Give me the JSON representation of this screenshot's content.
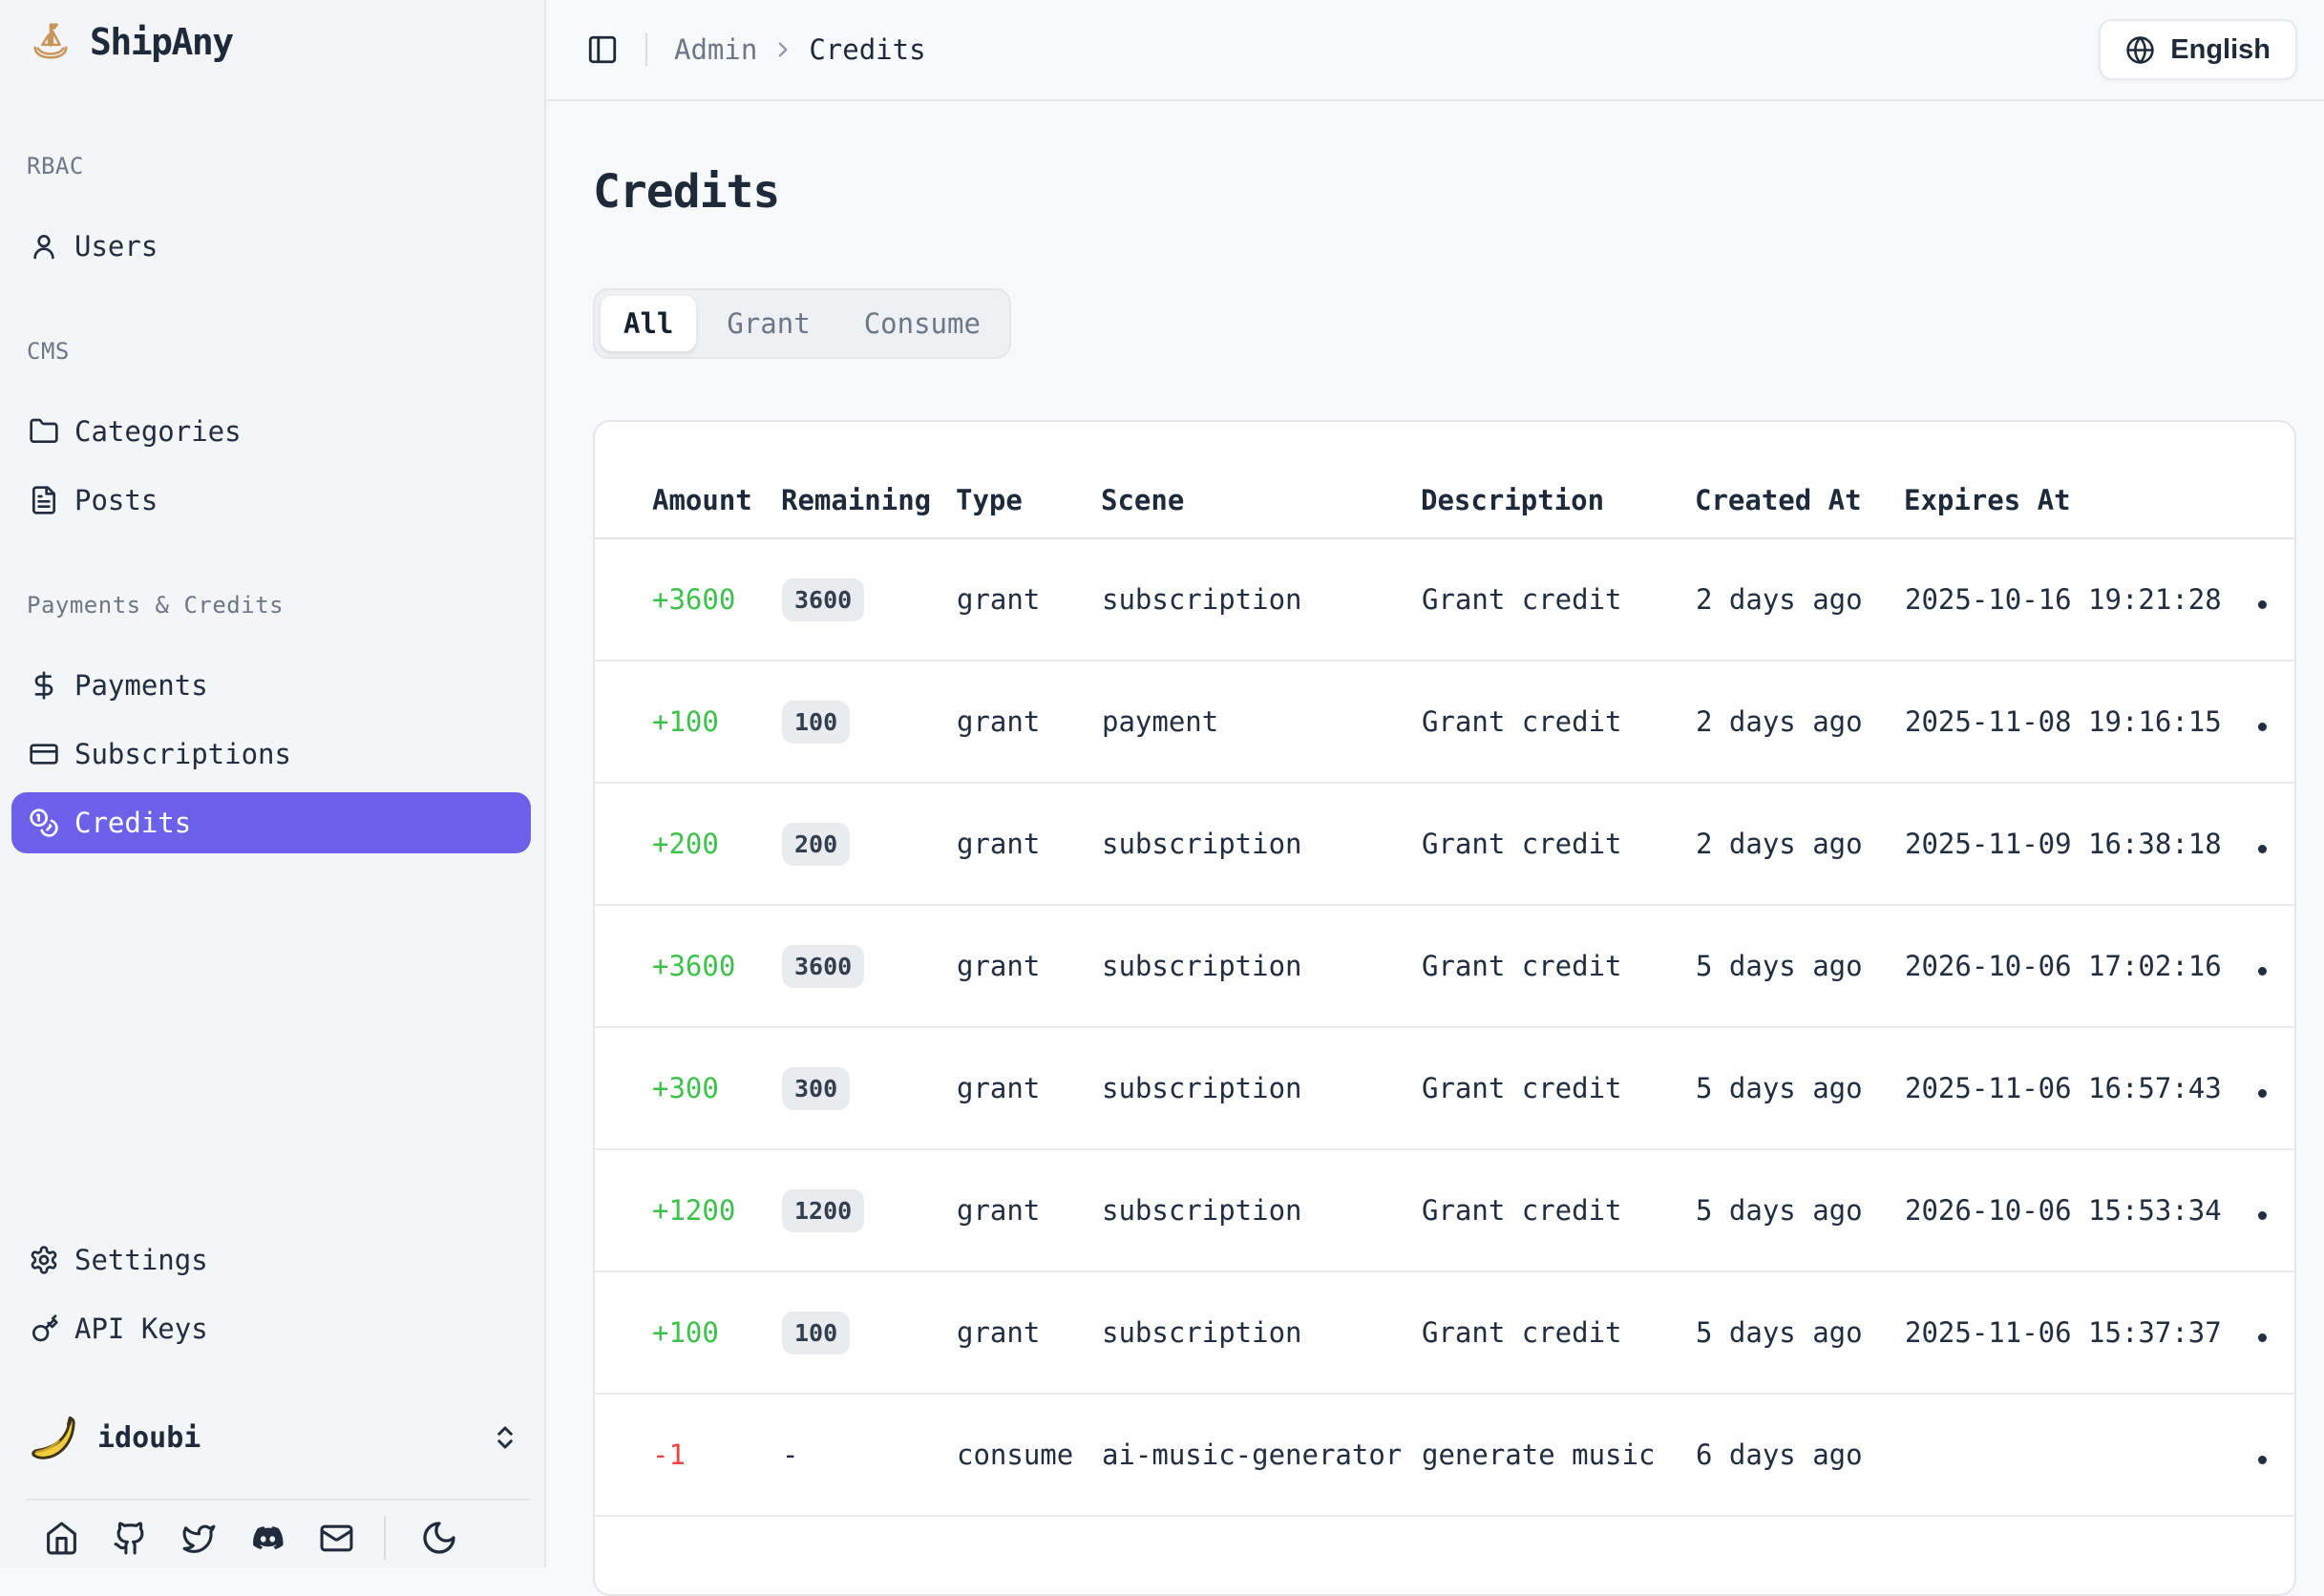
{
  "app": {
    "name": "ShipAny"
  },
  "sidebar": {
    "sections": [
      {
        "label": "RBAC",
        "items": [
          {
            "label": "Users",
            "icon": "user-icon",
            "active": false
          }
        ]
      },
      {
        "label": "CMS",
        "items": [
          {
            "label": "Categories",
            "icon": "folder-icon",
            "active": false
          },
          {
            "label": "Posts",
            "icon": "file-text-icon",
            "active": false
          }
        ]
      },
      {
        "label": "Payments & Credits",
        "items": [
          {
            "label": "Payments",
            "icon": "dollar-icon",
            "active": false
          },
          {
            "label": "Subscriptions",
            "icon": "credit-card-icon",
            "active": false
          },
          {
            "label": "Credits",
            "icon": "coins-icon",
            "active": true
          }
        ]
      }
    ],
    "utility_items": [
      {
        "label": "Settings",
        "icon": "gear-icon"
      },
      {
        "label": "API Keys",
        "icon": "key-icon"
      }
    ],
    "user": {
      "name": "idoubi",
      "avatar": "banana-avatar"
    },
    "footer_icons": [
      "home-icon",
      "github-icon",
      "twitter-icon",
      "discord-icon",
      "mail-icon"
    ],
    "theme_toggle_icon": "moon-icon"
  },
  "header": {
    "breadcrumb": {
      "section": "Admin",
      "page": "Credits"
    },
    "language_button": {
      "label": "English",
      "icon": "globe-icon"
    }
  },
  "page": {
    "title": "Credits",
    "tabs": [
      {
        "label": "All",
        "active": true
      },
      {
        "label": "Grant",
        "active": false
      },
      {
        "label": "Consume",
        "active": false
      }
    ]
  },
  "table": {
    "columns": [
      "Amount",
      "Remaining",
      "Type",
      "Scene",
      "Description",
      "Created At",
      "Expires At"
    ],
    "rows": [
      {
        "amount": "+3600",
        "negative": false,
        "remaining": "3600",
        "badge": true,
        "type": "grant",
        "scene": "subscription",
        "description": "Grant credit",
        "created_at": "2 days ago",
        "expires_at": "2025-10-16 19:21:28"
      },
      {
        "amount": "+100",
        "negative": false,
        "remaining": "100",
        "badge": true,
        "type": "grant",
        "scene": "payment",
        "description": "Grant credit",
        "created_at": "2 days ago",
        "expires_at": "2025-11-08 19:16:15"
      },
      {
        "amount": "+200",
        "negative": false,
        "remaining": "200",
        "badge": true,
        "type": "grant",
        "scene": "subscription",
        "description": "Grant credit",
        "created_at": "2 days ago",
        "expires_at": "2025-11-09 16:38:18"
      },
      {
        "amount": "+3600",
        "negative": false,
        "remaining": "3600",
        "badge": true,
        "type": "grant",
        "scene": "subscription",
        "description": "Grant credit",
        "created_at": "5 days ago",
        "expires_at": "2026-10-06 17:02:16"
      },
      {
        "amount": "+300",
        "negative": false,
        "remaining": "300",
        "badge": true,
        "type": "grant",
        "scene": "subscription",
        "description": "Grant credit",
        "created_at": "5 days ago",
        "expires_at": "2025-11-06 16:57:43"
      },
      {
        "amount": "+1200",
        "negative": false,
        "remaining": "1200",
        "badge": true,
        "type": "grant",
        "scene": "subscription",
        "description": "Grant credit",
        "created_at": "5 days ago",
        "expires_at": "2026-10-06 15:53:34"
      },
      {
        "amount": "+100",
        "negative": false,
        "remaining": "100",
        "badge": true,
        "type": "grant",
        "scene": "subscription",
        "description": "Grant credit",
        "created_at": "5 days ago",
        "expires_at": "2025-11-06 15:37:37"
      },
      {
        "amount": "-1",
        "negative": true,
        "remaining": "-",
        "badge": false,
        "type": "consume",
        "scene": "ai-music-generator",
        "description": "generate music",
        "created_at": "6 days ago",
        "expires_at": ""
      }
    ]
  },
  "colors": {
    "accent": "#6c61e8",
    "positive": "#3cc24b",
    "negative": "#ef4444",
    "text_dark": "#222e3f",
    "text_muted": "#6e7787",
    "badge_bg": "#e9ebee"
  }
}
